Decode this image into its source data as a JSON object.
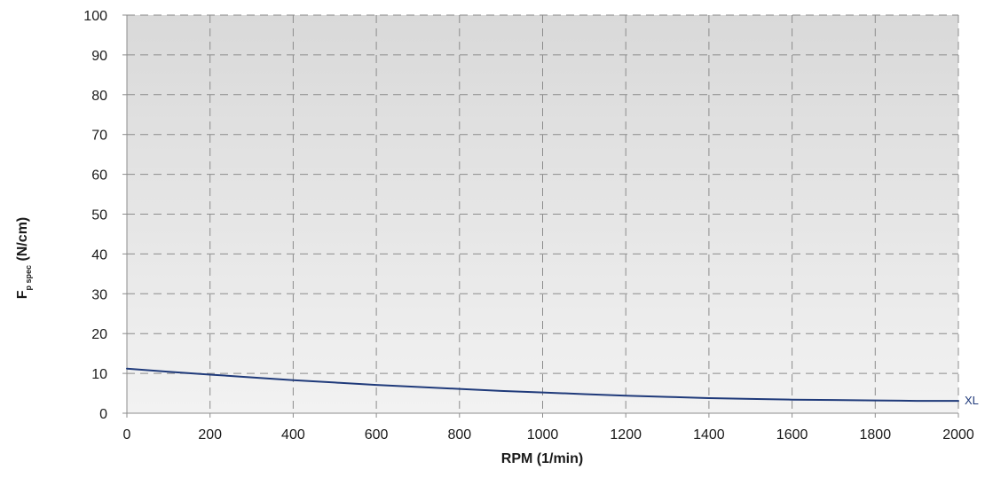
{
  "chart_data": {
    "type": "line",
    "xlabel": "RPM (1/min)",
    "ylabel": {
      "main": "F",
      "subscript": "p spec",
      "unit": " (N/cm)"
    },
    "xlim": [
      0,
      2000
    ],
    "ylim": [
      0,
      100
    ],
    "xticks": [
      0,
      200,
      400,
      600,
      800,
      1000,
      1200,
      1400,
      1600,
      1800,
      2000
    ],
    "yticks": [
      0,
      10,
      20,
      30,
      40,
      50,
      60,
      70,
      80,
      90,
      100
    ],
    "grid": true,
    "grid_style": "dashed",
    "background_gradient": [
      "#d9d9d9",
      "#f2f2f2"
    ],
    "series": [
      {
        "name": "XL",
        "color": "#1f3a7a",
        "x": [
          0,
          100,
          200,
          300,
          400,
          500,
          600,
          700,
          800,
          900,
          1000,
          1100,
          1200,
          1300,
          1400,
          1500,
          1600,
          1700,
          1800,
          1900,
          2000
        ],
        "y": [
          11.2,
          10.4,
          9.7,
          9.0,
          8.3,
          7.7,
          7.1,
          6.6,
          6.1,
          5.6,
          5.2,
          4.8,
          4.4,
          4.1,
          3.8,
          3.6,
          3.4,
          3.3,
          3.2,
          3.1,
          3.1
        ]
      }
    ]
  }
}
